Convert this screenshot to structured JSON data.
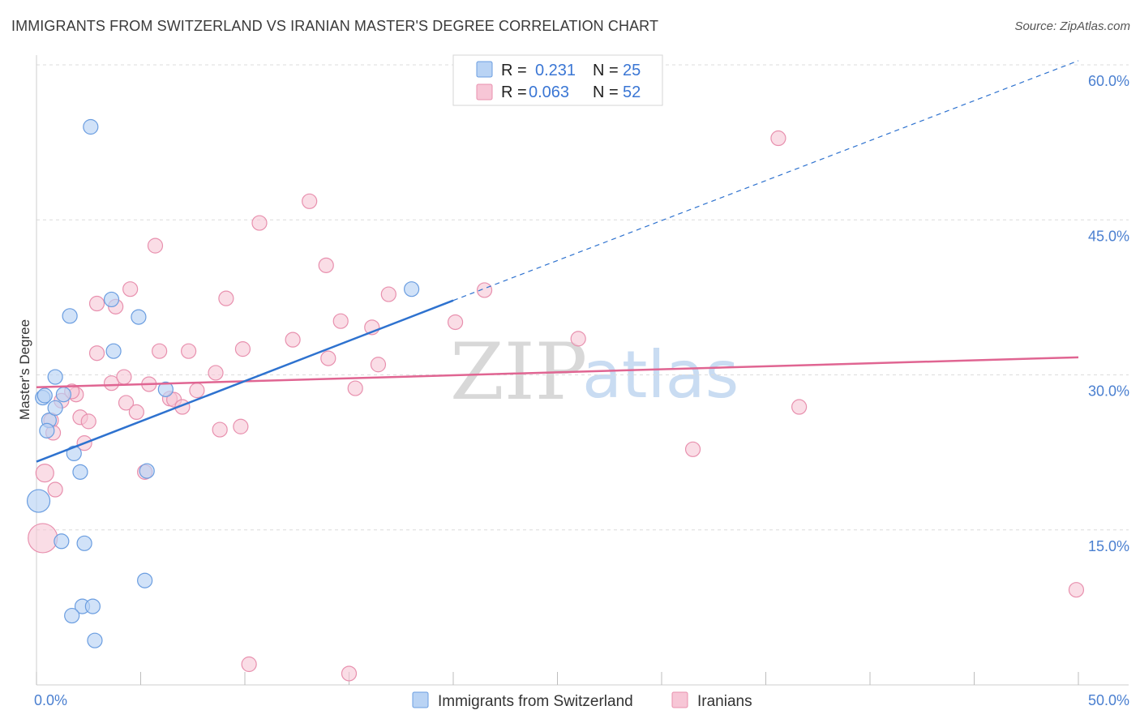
{
  "title": "IMMIGRANTS FROM SWITZERLAND VS IRANIAN MASTER'S DEGREE CORRELATION CHART",
  "source": "Source: ZipAtlas.com",
  "watermark": {
    "zip": "ZIP",
    "atlas": "atlas"
  },
  "colors": {
    "blue_fill": "#b9d3f4",
    "blue_stroke": "#6a9de0",
    "blue_line": "#2e72cf",
    "pink_fill": "#f7c6d6",
    "pink_stroke": "#e890ae",
    "pink_line": "#e06592",
    "grid": "#dcdcdc",
    "tick_text": "#4a7fd0"
  },
  "legend": {
    "r_label": "R =",
    "n_label": "N =",
    "series": [
      {
        "r": "0.231",
        "n": "25"
      },
      {
        "r": "0.063",
        "n": "52"
      }
    ]
  },
  "bottom_legend": [
    "Immigrants from Switzerland",
    "Iranians"
  ],
  "chart_data": {
    "type": "scatter",
    "title": "IMMIGRANTS FROM SWITZERLAND VS IRANIAN MASTER'S DEGREE CORRELATION CHART",
    "xlabel": "",
    "ylabel": "Master's Degree",
    "xlim": [
      0,
      50
    ],
    "ylim": [
      0,
      60
    ],
    "x_tick_labels": [
      "0.0%",
      "50.0%"
    ],
    "y_ticks": [
      15,
      30,
      45,
      60
    ],
    "y_tick_labels": [
      "15.0%",
      "30.0%",
      "45.0%",
      "60.0%"
    ],
    "series": [
      {
        "name": "Immigrants from Switzerland",
        "color": "blue",
        "points": [
          [
            2.6,
            54.0
          ],
          [
            0.1,
            17.8
          ],
          [
            0.3,
            27.8
          ],
          [
            0.6,
            25.6
          ],
          [
            0.9,
            26.8
          ],
          [
            1.3,
            28.1
          ],
          [
            0.5,
            24.6
          ],
          [
            0.9,
            29.8
          ],
          [
            1.6,
            35.7
          ],
          [
            3.6,
            37.3
          ],
          [
            4.9,
            35.6
          ],
          [
            3.7,
            32.3
          ],
          [
            6.2,
            28.6
          ],
          [
            1.8,
            22.4
          ],
          [
            2.1,
            20.6
          ],
          [
            5.3,
            20.7
          ],
          [
            1.2,
            13.9
          ],
          [
            2.3,
            13.7
          ],
          [
            5.2,
            10.1
          ],
          [
            2.2,
            7.6
          ],
          [
            2.7,
            7.6
          ],
          [
            1.7,
            6.7
          ],
          [
            2.8,
            4.3
          ],
          [
            18.0,
            38.3
          ],
          [
            0.4,
            28.0
          ]
        ],
        "trend": {
          "x": [
            0,
            20
          ],
          "y": [
            21.6,
            37.2
          ]
        },
        "trend_extension": {
          "x": [
            20,
            50
          ],
          "y": [
            37.2,
            60.4
          ]
        }
      },
      {
        "name": "Iranians",
        "color": "pink",
        "points": [
          [
            35.6,
            52.9
          ],
          [
            0.3,
            14.2
          ],
          [
            0.4,
            20.5
          ],
          [
            0.9,
            18.9
          ],
          [
            0.7,
            25.6
          ],
          [
            1.2,
            27.5
          ],
          [
            1.9,
            28.1
          ],
          [
            2.1,
            25.9
          ],
          [
            2.5,
            25.5
          ],
          [
            2.3,
            23.4
          ],
          [
            2.9,
            32.1
          ],
          [
            2.9,
            36.9
          ],
          [
            3.8,
            36.6
          ],
          [
            3.6,
            29.2
          ],
          [
            4.3,
            27.3
          ],
          [
            4.2,
            29.8
          ],
          [
            4.8,
            26.4
          ],
          [
            4.5,
            38.3
          ],
          [
            5.4,
            29.1
          ],
          [
            5.7,
            42.5
          ],
          [
            5.9,
            32.3
          ],
          [
            6.4,
            27.7
          ],
          [
            6.6,
            27.6
          ],
          [
            7.0,
            26.9
          ],
          [
            7.3,
            32.3
          ],
          [
            7.7,
            28.5
          ],
          [
            8.6,
            30.2
          ],
          [
            8.8,
            24.7
          ],
          [
            9.1,
            37.4
          ],
          [
            9.8,
            25.0
          ],
          [
            9.9,
            32.5
          ],
          [
            10.7,
            44.7
          ],
          [
            10.2,
            2.0
          ],
          [
            12.3,
            33.4
          ],
          [
            13.1,
            46.8
          ],
          [
            13.9,
            40.6
          ],
          [
            14.0,
            31.6
          ],
          [
            14.6,
            35.2
          ],
          [
            15.0,
            1.1
          ],
          [
            15.3,
            28.7
          ],
          [
            16.1,
            34.6
          ],
          [
            16.4,
            31.0
          ],
          [
            16.9,
            37.8
          ],
          [
            20.1,
            35.1
          ],
          [
            21.5,
            38.2
          ],
          [
            26.0,
            33.5
          ],
          [
            31.5,
            22.8
          ],
          [
            36.6,
            26.9
          ],
          [
            49.9,
            9.2
          ],
          [
            1.7,
            28.4
          ],
          [
            5.2,
            20.6
          ],
          [
            0.8,
            24.4
          ]
        ],
        "trend": {
          "x": [
            0,
            50
          ],
          "y": [
            28.8,
            31.7
          ]
        }
      }
    ]
  }
}
